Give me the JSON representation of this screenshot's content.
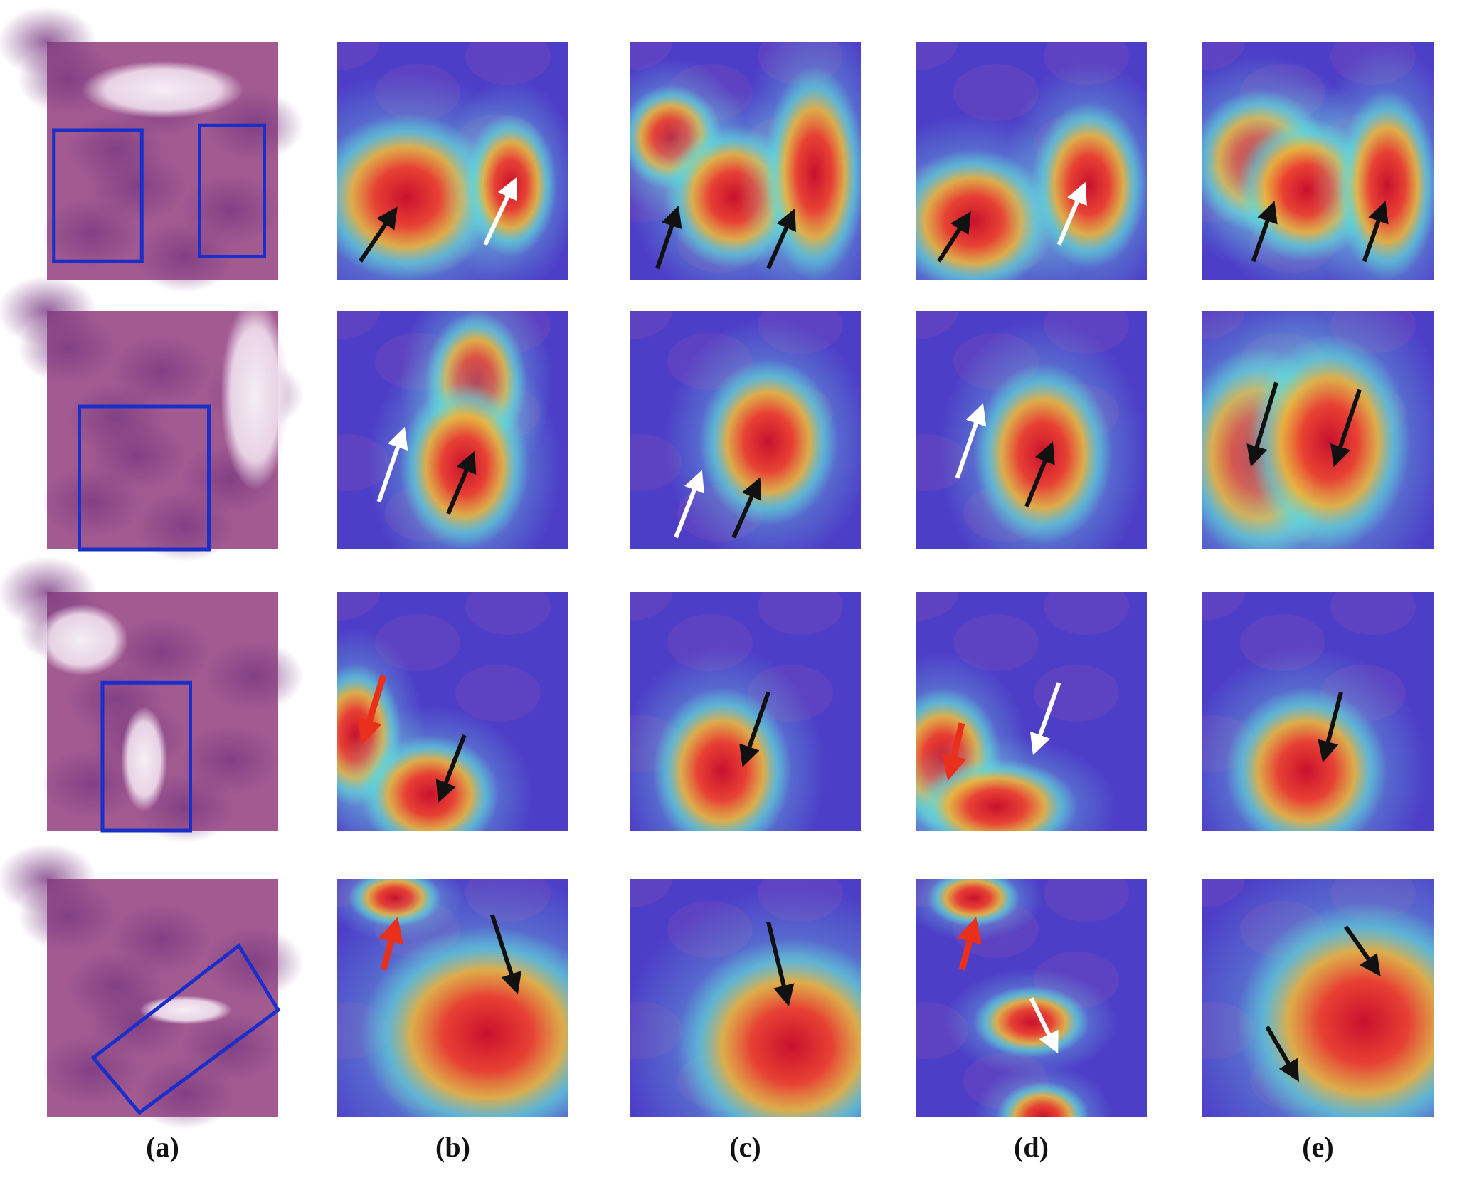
{
  "panel_labels": [
    "(a)",
    "(b)",
    "(c)",
    "(d)",
    "(e)"
  ]
}
